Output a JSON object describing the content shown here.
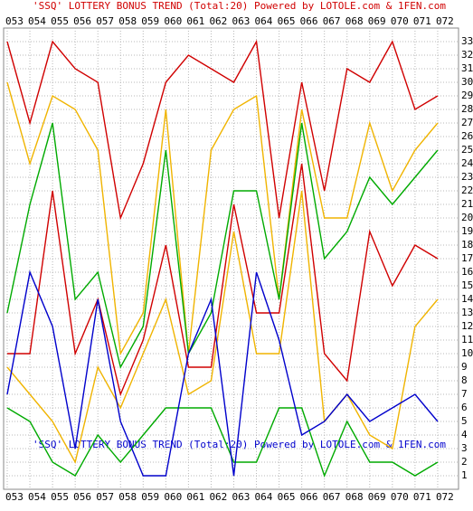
{
  "chart_data": {
    "type": "line",
    "title": "'SSQ' LOTTERY BONUS TREND (Total:20)  Powered by LOTOLE.com & 1FEN.com",
    "categories": [
      "053",
      "054",
      "055",
      "056",
      "057",
      "058",
      "059",
      "060",
      "061",
      "062",
      "063",
      "064",
      "065",
      "066",
      "067",
      "068",
      "069",
      "070",
      "071",
      "072"
    ],
    "ylim": [
      0,
      34
    ],
    "yticks": [
      1,
      2,
      3,
      4,
      5,
      6,
      7,
      8,
      9,
      10,
      11,
      12,
      13,
      14,
      15,
      16,
      17,
      18,
      19,
      20,
      21,
      22,
      23,
      24,
      25,
      26,
      27,
      28,
      29,
      30,
      31,
      32,
      33
    ],
    "grid": true,
    "series": [
      {
        "color": "#d00000",
        "values": [
          33,
          27,
          33,
          31,
          30,
          20,
          24,
          30,
          32,
          31,
          30,
          33,
          20,
          30,
          22,
          31,
          30,
          33,
          28,
          29
        ]
      },
      {
        "color": "#f0b400",
        "values": [
          30,
          24,
          29,
          28,
          25,
          10,
          13,
          28,
          10,
          25,
          28,
          29,
          14,
          28,
          20,
          20,
          27,
          22,
          25,
          27
        ]
      },
      {
        "color": "#00aa00",
        "values": [
          13,
          21,
          27,
          14,
          16,
          9,
          12,
          25,
          10,
          13,
          22,
          22,
          14,
          27,
          17,
          19,
          23,
          21,
          23,
          25
        ]
      },
      {
        "color": "#d00000",
        "values": [
          10,
          10,
          22,
          10,
          14,
          7,
          11,
          18,
          9,
          9,
          21,
          13,
          13,
          24,
          10,
          8,
          19,
          15,
          18,
          17
        ]
      },
      {
        "color": "#f0b400",
        "values": [
          9,
          7,
          5,
          2,
          9,
          6,
          10,
          14,
          7,
          8,
          19,
          10,
          10,
          22,
          5,
          7,
          4,
          3,
          12,
          14
        ]
      },
      {
        "color": "#00aa00",
        "values": [
          6,
          5,
          2,
          1,
          4,
          2,
          4,
          6,
          6,
          6,
          2,
          2,
          6,
          6,
          1,
          5,
          2,
          2,
          1,
          2
        ]
      },
      {
        "color": "#0000cc",
        "values": [
          7,
          16,
          12,
          3,
          14,
          5,
          1,
          1,
          10,
          14,
          1,
          16,
          11,
          4,
          5,
          7,
          5,
          6,
          7,
          5
        ]
      }
    ]
  }
}
